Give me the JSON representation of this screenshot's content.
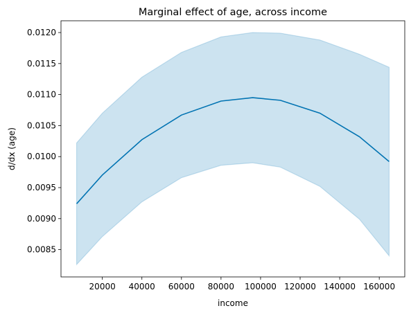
{
  "chart_data": {
    "type": "line_band",
    "title": "Marginal effect of age, across income",
    "x_label": "income",
    "y_label": "d/dx (age)",
    "x": [
      7000,
      20000,
      40000,
      60000,
      80000,
      96000,
      110000,
      130000,
      150000,
      165000
    ],
    "values": [
      0.00924,
      0.009703,
      0.010273,
      0.01067,
      0.010895,
      0.01095,
      0.010908,
      0.0107,
      0.01032,
      0.00992
    ],
    "upper": [
      0.01022,
      0.0107,
      0.01128,
      0.01168,
      0.01193,
      0.012,
      0.01199,
      0.01188,
      0.01165,
      0.01144
    ],
    "lower": [
      0.00826,
      0.00871,
      0.00927,
      0.00966,
      0.00986,
      0.0099,
      0.00983,
      0.00952,
      0.00899,
      0.0084
    ],
    "color": "#0173b2",
    "band_color": "#0173b2",
    "xlim": [
      -900,
      172900
    ],
    "ylim": [
      0.00806,
      0.01219
    ],
    "xticks": [
      20000,
      40000,
      60000,
      80000,
      100000,
      120000,
      140000,
      160000
    ],
    "yticks": [
      0.0085,
      {
        "value": 0.009,
        "label": "0.0090"
      },
      0.0095,
      {
        "value": 0.01,
        "label": "0.0100"
      },
      0.0105,
      {
        "value": 0.011,
        "label": "0.0110"
      },
      0.0115,
      {
        "value": 0.012,
        "label": "0.0120"
      }
    ]
  }
}
